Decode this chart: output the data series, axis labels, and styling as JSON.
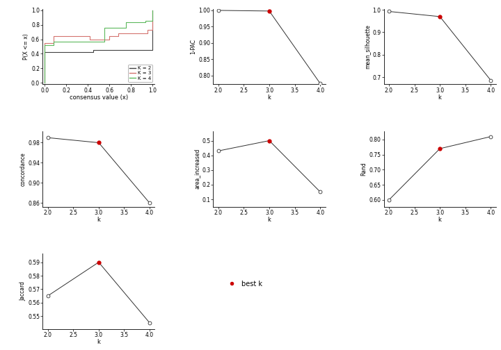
{
  "ecdf": {
    "k2": {
      "x": [
        0.0,
        0.0,
        0.45,
        0.45,
        1.0,
        1.0
      ],
      "y": [
        0.0,
        0.42,
        0.42,
        0.45,
        0.45,
        1.0
      ]
    },
    "k3": {
      "x": [
        0.0,
        0.0,
        0.08,
        0.08,
        0.42,
        0.42,
        0.6,
        0.6,
        0.68,
        0.68,
        0.95,
        0.95,
        1.0,
        1.0
      ],
      "y": [
        0.0,
        0.55,
        0.55,
        0.64,
        0.64,
        0.6,
        0.6,
        0.64,
        0.64,
        0.68,
        0.68,
        0.73,
        0.73,
        1.0
      ]
    },
    "k4": {
      "x": [
        0.0,
        0.0,
        0.08,
        0.08,
        0.55,
        0.55,
        0.75,
        0.75,
        0.93,
        0.93,
        1.0,
        1.0
      ],
      "y": [
        0.0,
        0.52,
        0.52,
        0.57,
        0.57,
        0.76,
        0.76,
        0.83,
        0.83,
        0.85,
        0.85,
        1.0
      ]
    }
  },
  "ecdf_colors": {
    "k2": "#404040",
    "k3": "#d4736e",
    "k4": "#5cb85c"
  },
  "legend_labels": [
    "K = 2",
    "K = 3",
    "K = 4"
  ],
  "k_values": [
    2,
    3,
    4
  ],
  "pac1": [
    1.0,
    0.998,
    0.775
  ],
  "mean_silhouette": [
    0.993,
    0.97,
    0.685
  ],
  "concordance": [
    0.99,
    0.98,
    0.86
  ],
  "area_increased": [
    0.43,
    0.5,
    0.15
  ],
  "Rand": [
    0.6,
    0.77,
    0.81
  ],
  "Jaccard": [
    0.565,
    0.59,
    0.545
  ],
  "best_k": 3,
  "best_k_color": "#cc0000",
  "line_color": "#303030",
  "marker_edge_color": "#303030",
  "xlabel": "k",
  "ecdf_xlabel": "consensus value (x)",
  "ecdf_ylabel": "P(X <= x)",
  "pac_ylabel": "1-PAC",
  "sil_ylabel": "mean_silhouette",
  "conc_ylabel": "concordance",
  "area_ylabel": "area_increased",
  "rand_ylabel": "Rand",
  "jacc_ylabel": "Jaccard",
  "background": "white"
}
